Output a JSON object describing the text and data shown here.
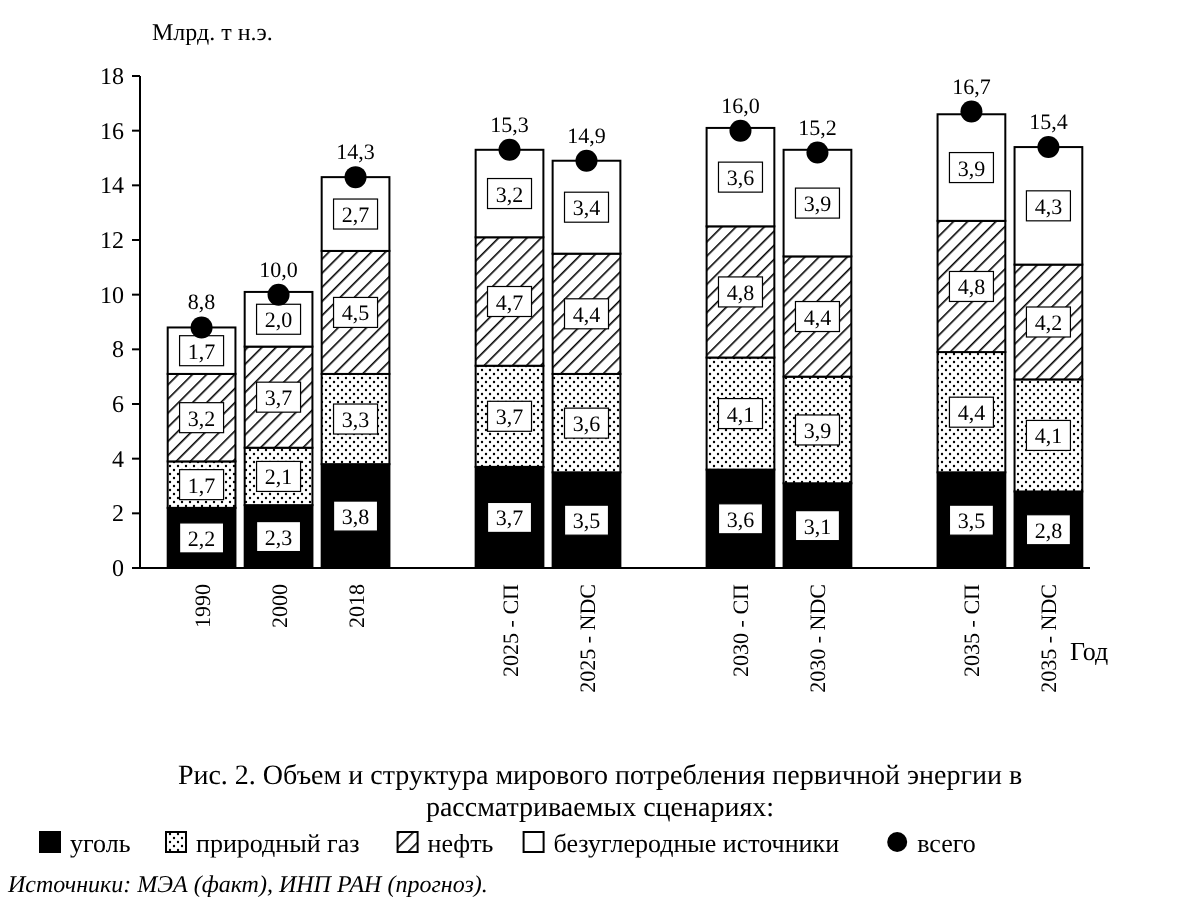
{
  "chart_data": {
    "type": "bar",
    "stacked": true,
    "title": "Рис. 2. Объем и структура мирового потребления первичной энергии в рассматриваемых сценариях:",
    "ylabel": "Млрд. т н.э.",
    "xlabel": "Год",
    "categories": [
      "1990",
      "2000",
      "2018",
      null,
      "2025 - СП",
      "2025 - NDC",
      null,
      "2030 - СП",
      "2030 - NDC",
      null,
      "2035 - СП",
      "2035 - NDC"
    ],
    "series": [
      {
        "name": "уголь",
        "color": "#000000",
        "values": [
          2.2,
          2.3,
          3.8,
          null,
          3.7,
          3.5,
          null,
          3.6,
          3.1,
          null,
          3.5,
          2.8
        ],
        "value_labels": [
          "2,2",
          "2,3",
          "3,8",
          null,
          "3,7",
          "3,5",
          null,
          "3,6",
          "3,1",
          null,
          "3,5",
          "2,8"
        ]
      },
      {
        "name": "природный газ",
        "color": "#000000",
        "values": [
          1.7,
          2.1,
          3.3,
          null,
          3.7,
          3.6,
          null,
          4.1,
          3.9,
          null,
          4.4,
          4.1
        ],
        "value_labels": [
          "1,7",
          "2,1",
          "3,3",
          null,
          "3,7",
          "3,6",
          null,
          "4,1",
          "3,9",
          null,
          "4,4",
          "4,1"
        ]
      },
      {
        "name": "нефть",
        "color": "#000000",
        "values": [
          3.2,
          3.7,
          4.5,
          null,
          4.7,
          4.4,
          null,
          4.8,
          4.4,
          null,
          4.8,
          4.2
        ],
        "value_labels": [
          "3,2",
          "3,7",
          "4,5",
          null,
          "4,7",
          "4,4",
          null,
          "4,8",
          "4,4",
          null,
          "4,8",
          "4,2"
        ]
      },
      {
        "name": "безуглеродные источники",
        "color": "#ffffff",
        "values": [
          1.7,
          2.0,
          2.7,
          null,
          3.2,
          3.4,
          null,
          3.6,
          3.9,
          null,
          3.9,
          4.3
        ],
        "value_labels": [
          "1,7",
          "2,0",
          "2,7",
          null,
          "3,2",
          "3,4",
          null,
          "3,6",
          "3,9",
          null,
          "3,9",
          "4,3"
        ]
      },
      {
        "name": "всего",
        "type": "scatter",
        "color": "#000000",
        "values": [
          8.8,
          10.0,
          14.3,
          null,
          15.3,
          14.9,
          null,
          16.0,
          15.2,
          null,
          16.7,
          15.4
        ],
        "value_labels": [
          "8,8",
          "10,0",
          "14,3",
          null,
          "15,3",
          "14,9",
          null,
          "16,0",
          "15,2",
          null,
          "16,7",
          "15,4"
        ]
      }
    ],
    "ylim": [
      0,
      18
    ],
    "yticks": [
      0,
      2,
      4,
      6,
      8,
      10,
      12,
      14,
      16,
      18
    ],
    "grid": false,
    "legend": "bottom",
    "marker": "circle",
    "annotations": [
      "Источники: МЭА (факт), ИНП РАН (прогноз)."
    ]
  }
}
